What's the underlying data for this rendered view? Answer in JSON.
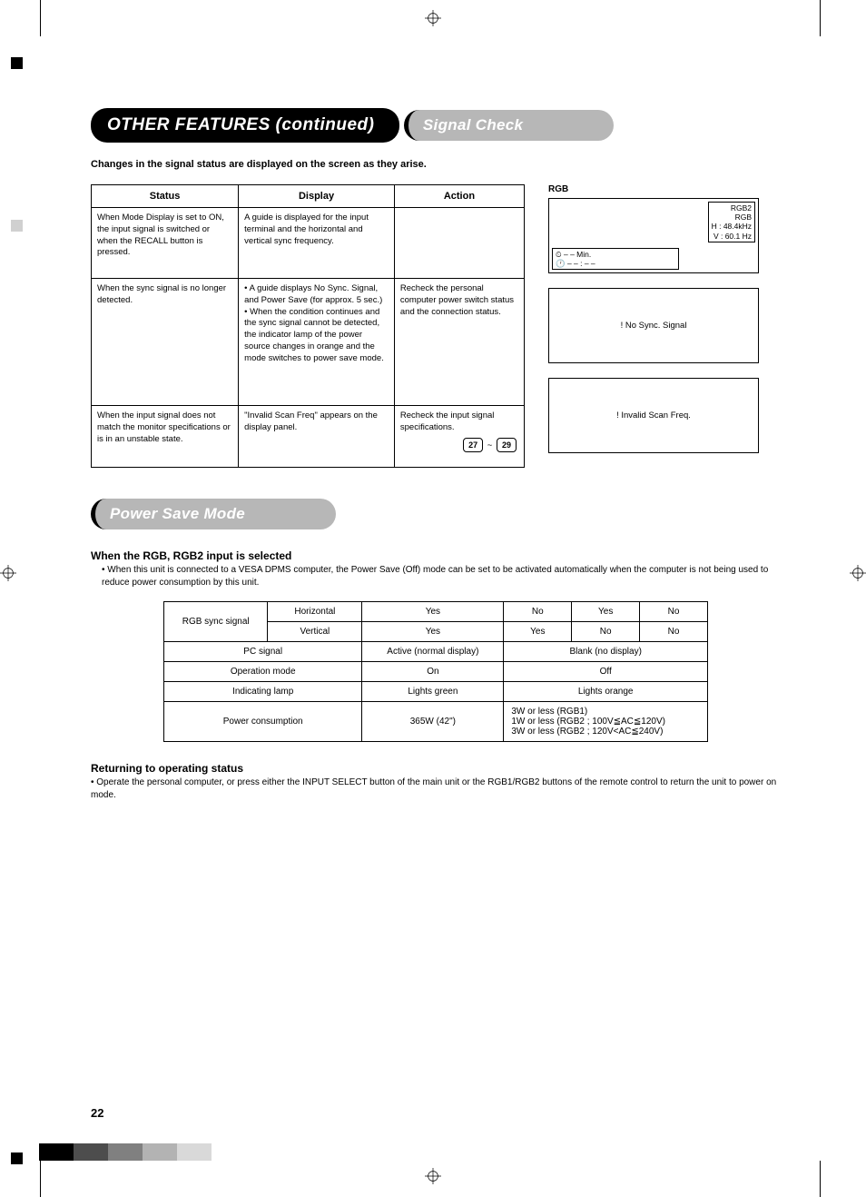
{
  "page": {
    "number": "22",
    "title": "OTHER FEATURES (continued)"
  },
  "signal_check": {
    "heading": "Signal Check",
    "intro": "Changes in the signal status are displayed on the screen as they arise.",
    "table": {
      "headers": [
        "Status",
        "Display",
        "Action"
      ],
      "rows": [
        {
          "status": "When Mode Display is set to ON, the input signal is switched or when the RECALL button is pressed.",
          "display": "A guide is displayed for the input terminal and the horizontal and vertical sync frequency.",
          "action": ""
        },
        {
          "status": "When the sync signal is no longer detected.",
          "display": "• A guide displays No Sync. Signal, and Power Save (for approx. 5 sec.)\n• When the condition continues and the sync signal cannot be detected, the indicator lamp of the power source changes in orange and the mode switches to power save mode.",
          "action": "Recheck the personal computer power switch status and the connection status."
        },
        {
          "status": "When the input signal does not match the monitor specifications or is in an unstable state.",
          "display": "\"Invalid Scan Freq\" appears on the display panel.",
          "action": "Recheck the input signal specifications.",
          "refs": [
            "27",
            "29"
          ]
        }
      ]
    },
    "side": {
      "label": "RGB",
      "box1": {
        "tag_lines": [
          "RGB2",
          "RGB",
          "H :  48.4kHz",
          "V :   60.1 Hz"
        ],
        "timer_lines": [
          "⏲   – – Min.",
          "🕐  – – : – –"
        ]
      },
      "box2": {
        "text": "! No Sync. Signal"
      },
      "box3": {
        "text": "! Invalid Scan Freq."
      }
    }
  },
  "power_save": {
    "heading": "Power Save Mode",
    "sub1_title": "When the RGB, RGB2 input is selected",
    "sub1_text": "• When this unit is connected to a VESA DPMS computer, the Power Save (Off) mode can be set to be activated automatically when the computer is not being used to reduce power consumption by this unit.",
    "table": {
      "rows": [
        [
          "RGB sync signal",
          "Horizontal",
          "Yes",
          "No",
          "Yes",
          "No"
        ],
        [
          "",
          "Vertical",
          "Yes",
          "Yes",
          "No",
          "No"
        ],
        [
          "PC signal",
          "",
          "Active (normal display)",
          "Blank (no display)",
          "",
          ""
        ],
        [
          "Operation mode",
          "",
          "On",
          "Off",
          "",
          ""
        ],
        [
          "Indicating lamp",
          "",
          "Lights green",
          "Lights orange",
          "",
          ""
        ],
        [
          "Power consumption",
          "",
          "365W (42\")",
          "3W or less (RGB1)\n1W or less (RGB2 ; 100V≦AC≦120V)\n3W or less (RGB2 ; 120V<AC≦240V)",
          "",
          ""
        ]
      ]
    },
    "sub2_title": "Returning to operating status",
    "sub2_text": "• Operate the personal computer, or press either the INPUT SELECT button of the main unit or the RGB1/RGB2 buttons of the remote control to return the unit to power on mode."
  },
  "footer_colors": [
    "#000000",
    "#000000",
    "#4d4d4d",
    "#4d4d4d",
    "#808080",
    "#808080",
    "#b3b3b3",
    "#b3b3b3",
    "#d9d9d9",
    "#d9d9d9"
  ]
}
